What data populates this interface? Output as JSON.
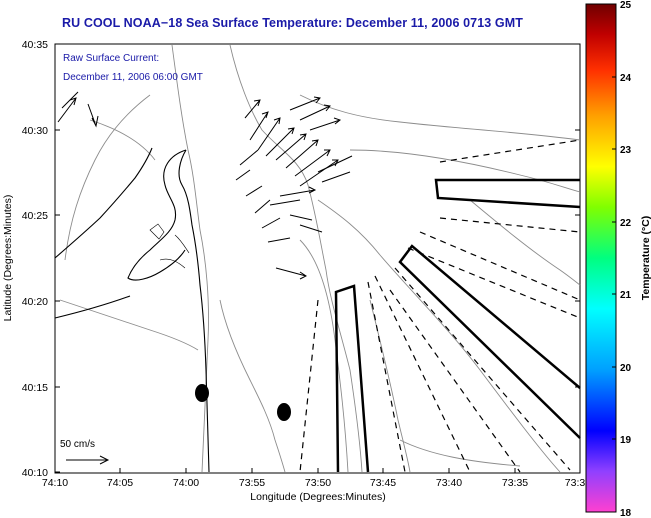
{
  "title": "RU COOL  NOAA−18  Sea Surface Temperature:  December 11, 2006 0713 GMT",
  "annotation": {
    "line1": "Raw Surface Current:",
    "line2": "December 11, 2006 06:00 GMT"
  },
  "scale_arrow_label": "50 cm/s",
  "axes": {
    "xlabel": "Longitude (Degrees:Minutes)",
    "ylabel": "Latitude (Degrees:Minutes)",
    "x_ticks": [
      "74:10",
      "74:05",
      "74:00",
      "73:55",
      "73:50",
      "73:45",
      "73:40",
      "73:35",
      "73:3"
    ],
    "y_ticks": [
      "40:35",
      "40:30",
      "40:25",
      "40:20",
      "40:15",
      "40:10"
    ]
  },
  "colorbar": {
    "label": "Temperature (°C)",
    "ticks": [
      "25",
      "24",
      "23",
      "22",
      "21",
      "20",
      "19",
      "18"
    ],
    "min": 18,
    "max": 25,
    "colors": [
      "#ff40d0",
      "#9040ff",
      "#0000ff",
      "#00a0ff",
      "#00ffff",
      "#00ff80",
      "#80ff00",
      "#ffff00",
      "#ffa000",
      "#ff3000",
      "#c00000",
      "#700000"
    ]
  }
}
